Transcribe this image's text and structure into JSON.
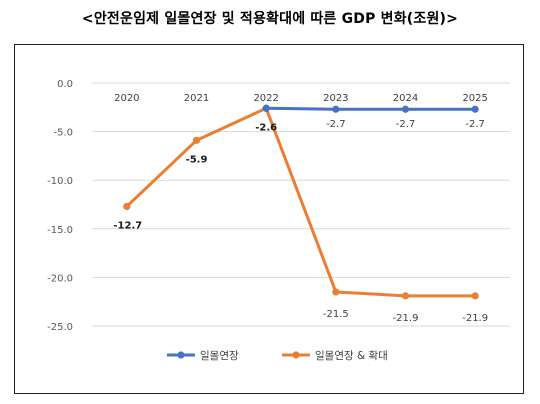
{
  "title": "<안전운임제 일몰연장 및 적용확대에 따른 GDP 변화(조원)>",
  "chart_data": {
    "type": "line",
    "title": "<안전운임제 일몰연장 및 적용확대에 따른 GDP 변화(조원)>",
    "categories": [
      "2020",
      "2021",
      "2022",
      "2023",
      "2024",
      "2025"
    ],
    "ylim": [
      -25,
      0
    ],
    "yticks": [
      0.0,
      -5.0,
      -10.0,
      -15.0,
      -20.0,
      -25.0
    ],
    "ytick_labels": [
      "0.0",
      "-5.0",
      "-10.0",
      "-15.0",
      "-20.0",
      "-25.0"
    ],
    "grid": true,
    "legend_position": "bottom",
    "xaxis_position": "top",
    "series": [
      {
        "name": "일몰연장",
        "color": "#4472C4",
        "values": [
          null,
          null,
          -2.6,
          -2.7,
          -2.7,
          -2.7
        ],
        "labels": [
          "",
          "",
          "",
          "-2.7",
          "-2.7",
          "-2.7"
        ]
      },
      {
        "name": "일몰연장 & 확대",
        "color": "#ED7D31",
        "values": [
          -12.7,
          -5.9,
          -2.6,
          -21.5,
          -21.9,
          -21.9
        ],
        "labels": [
          "-12.7",
          "-5.9",
          "-2.6",
          "-21.5",
          "-21.9",
          "-21.9"
        ]
      }
    ]
  }
}
